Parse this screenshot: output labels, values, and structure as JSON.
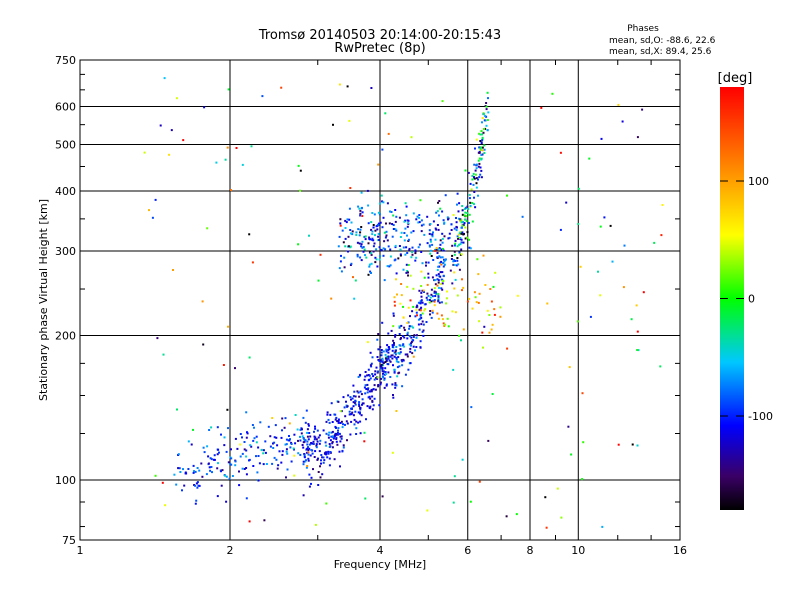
{
  "chart_data": {
    "type": "scatter",
    "title": "Tromsø 20140503 20:14:00-20:15:43",
    "subtitle": "RwPretec (8p)",
    "xlabel": "Frequency [MHz]",
    "ylabel": "Stationary phase Virtual Height [km]",
    "x_scale": "log",
    "y_scale": "log",
    "xlim": [
      1,
      16
    ],
    "ylim": [
      75,
      750
    ],
    "x_ticks": [
      "1",
      "2",
      "4",
      "6",
      "8",
      "10",
      "16"
    ],
    "x_tick_values": [
      1,
      2,
      4,
      6,
      8,
      10,
      16
    ],
    "y_ticks": [
      "75",
      "100",
      "200",
      "300",
      "400",
      "500",
      "600",
      "750"
    ],
    "y_tick_values": [
      75,
      100,
      200,
      300,
      400,
      500,
      600,
      750
    ],
    "grid": true,
    "stats": {
      "heading": "Phases",
      "line_o": "mean, sd,O: -88.6, 22.6",
      "line_x": "mean, sd,X:  89.4, 25.6"
    },
    "colorbar": {
      "label": "[deg]",
      "range": [
        -180,
        180
      ],
      "ticks": [
        "100",
        "0",
        "-100"
      ],
      "tick_values": [
        100,
        0,
        -100
      ]
    },
    "point_groups": [
      {
        "name": "low_e_trace",
        "x_range": [
          1.55,
          2.9
        ],
        "y_range": [
          106,
          122
        ],
        "phase_mean": -95,
        "phase_sd": 25,
        "count": 200,
        "y_trend": "rising"
      },
      {
        "name": "f1_lower_trace",
        "x_range": [
          2.8,
          4.3
        ],
        "y_range": [
          112,
          200
        ],
        "phase_mean": -110,
        "phase_sd": 20,
        "count": 330,
        "y_trend": "rising"
      },
      {
        "name": "f1_upper_trace",
        "x_range": [
          4.0,
          5.4
        ],
        "y_range": [
          170,
          275
        ],
        "phase_mean": -105,
        "phase_sd": 30,
        "count": 230,
        "y_trend": "rising"
      },
      {
        "name": "f2_plateau",
        "x_range": [
          3.3,
          5.8
        ],
        "y_range": [
          295,
          355
        ],
        "phase_mean": -95,
        "phase_sd": 40,
        "count": 320,
        "y_trend": "flat"
      },
      {
        "name": "f2_cusp",
        "x_range": [
          5.6,
          6.6
        ],
        "y_range": [
          300,
          620
        ],
        "phase_mean": -60,
        "phase_sd": 70,
        "count": 160,
        "y_trend": "rising"
      },
      {
        "name": "oblique_x_mode",
        "x_range": [
          4.2,
          7.0
        ],
        "y_range": [
          200,
          290
        ],
        "phase_mean": 80,
        "phase_sd": 50,
        "count": 90,
        "y_trend": "flat"
      },
      {
        "name": "scattered_noise",
        "x_range": [
          1.3,
          15.0
        ],
        "y_range": [
          78,
          700
        ],
        "phase_mean": 0,
        "phase_sd": 110,
        "count": 170,
        "y_trend": "random"
      }
    ]
  }
}
